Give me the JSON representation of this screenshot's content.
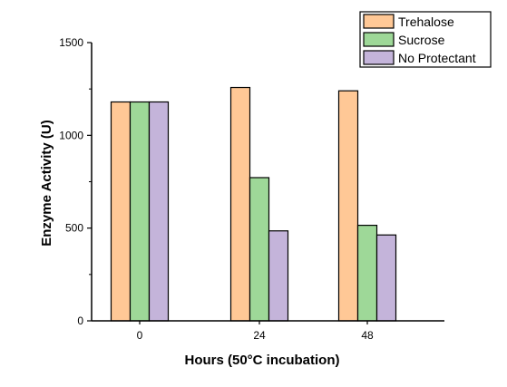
{
  "chart_data": {
    "type": "bar",
    "title": "",
    "xlabel": "Hours (50°C incubation)",
    "ylabel": "Enzyme Activity (U)",
    "categories": [
      "0",
      "24",
      "48"
    ],
    "ylim": [
      0,
      1500
    ],
    "yticks": [
      "0",
      "500",
      "1000",
      "1500"
    ],
    "grid": false,
    "legend_position": "top-right",
    "series": [
      {
        "name": "Trehalose",
        "color": "#FFC896",
        "values": [
          1180,
          1258,
          1240
        ]
      },
      {
        "name": "Sucrose",
        "color": "#9ED898",
        "values": [
          1180,
          772,
          515
        ]
      },
      {
        "name": "No Protectant",
        "color": "#C4B4DA",
        "values": [
          1180,
          485,
          463
        ]
      }
    ]
  }
}
